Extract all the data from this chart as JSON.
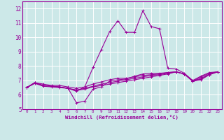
{
  "title": "",
  "xlabel": "Windchill (Refroidissement éolien,°C)",
  "ylabel": "",
  "bg_color": "#cce8e8",
  "line_color": "#990099",
  "grid_color": "#ffffff",
  "x_ticks": [
    0,
    1,
    2,
    3,
    4,
    5,
    6,
    7,
    8,
    9,
    10,
    11,
    12,
    13,
    14,
    15,
    16,
    17,
    18,
    19,
    20,
    21,
    22,
    23
  ],
  "y_ticks": [
    5,
    6,
    7,
    8,
    9,
    10,
    11,
    12
  ],
  "xlim": [
    -0.5,
    23.5
  ],
  "ylim": [
    5,
    12.5
  ],
  "lines": [
    {
      "x": [
        0,
        1,
        2,
        3,
        4,
        5,
        6,
        7,
        8,
        9,
        10,
        11,
        12,
        13,
        14,
        15,
        16,
        17,
        18,
        19,
        20,
        21,
        22,
        23
      ],
      "y": [
        6.5,
        6.85,
        6.65,
        6.6,
        6.55,
        6.45,
        6.25,
        6.55,
        7.9,
        9.15,
        10.4,
        11.15,
        10.35,
        10.35,
        11.85,
        10.75,
        10.6,
        7.85,
        7.8,
        7.5,
        7.0,
        7.3,
        7.55,
        7.6
      ]
    },
    {
      "x": [
        0,
        1,
        2,
        3,
        4,
        5,
        6,
        7,
        8,
        9,
        10,
        11,
        12,
        13,
        14,
        15,
        16,
        17,
        18,
        19,
        20,
        21,
        22,
        23
      ],
      "y": [
        6.5,
        6.85,
        6.65,
        6.6,
        6.55,
        6.45,
        5.45,
        5.55,
        6.4,
        6.55,
        6.95,
        7.05,
        7.1,
        7.3,
        7.45,
        7.5,
        7.5,
        7.55,
        7.6,
        7.45,
        6.95,
        7.25,
        7.5,
        7.6
      ]
    },
    {
      "x": [
        0,
        1,
        2,
        3,
        4,
        5,
        6,
        7,
        8,
        9,
        10,
        11,
        12,
        13,
        14,
        15,
        16,
        17,
        18,
        19,
        20,
        21,
        22,
        23
      ],
      "y": [
        6.5,
        6.85,
        6.75,
        6.65,
        6.65,
        6.55,
        6.45,
        6.55,
        6.75,
        6.9,
        7.05,
        7.15,
        7.15,
        7.25,
        7.35,
        7.4,
        7.45,
        7.55,
        7.6,
        7.45,
        6.95,
        7.15,
        7.45,
        7.6
      ]
    },
    {
      "x": [
        0,
        1,
        2,
        3,
        4,
        5,
        6,
        7,
        8,
        9,
        10,
        11,
        12,
        13,
        14,
        15,
        16,
        17,
        18,
        19,
        20,
        21,
        22,
        23
      ],
      "y": [
        6.5,
        6.8,
        6.65,
        6.6,
        6.55,
        6.45,
        6.35,
        6.45,
        6.6,
        6.75,
        6.85,
        6.95,
        7.05,
        7.15,
        7.25,
        7.35,
        7.4,
        7.5,
        7.6,
        7.45,
        6.95,
        7.1,
        7.4,
        7.6
      ]
    },
    {
      "x": [
        0,
        1,
        2,
        3,
        4,
        5,
        6,
        7,
        8,
        9,
        10,
        11,
        12,
        13,
        14,
        15,
        16,
        17,
        18,
        19,
        20,
        21,
        22,
        23
      ],
      "y": [
        6.5,
        6.8,
        6.6,
        6.55,
        6.5,
        6.45,
        6.3,
        6.4,
        6.55,
        6.65,
        6.75,
        6.85,
        6.95,
        7.05,
        7.15,
        7.25,
        7.35,
        7.45,
        7.6,
        7.45,
        6.95,
        7.05,
        7.4,
        7.6
      ]
    }
  ],
  "marker": "+",
  "marker_size": 3,
  "line_width": 0.8
}
